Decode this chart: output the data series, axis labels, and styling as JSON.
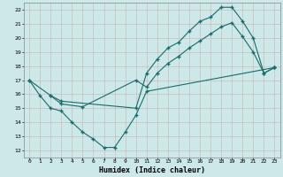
{
  "title": "",
  "xlabel": "Humidex (Indice chaleur)",
  "ylabel": "",
  "bg_color": "#cce8e8",
  "line_color": "#1a6b6b",
  "ylim": [
    11.5,
    22.5
  ],
  "xlim": [
    -0.5,
    23.5
  ],
  "yticks": [
    12,
    13,
    14,
    15,
    16,
    17,
    18,
    19,
    20,
    21,
    22
  ],
  "xticks": [
    0,
    1,
    2,
    3,
    4,
    5,
    6,
    7,
    8,
    9,
    10,
    11,
    12,
    13,
    14,
    15,
    16,
    17,
    18,
    19,
    20,
    21,
    22,
    23
  ],
  "line1_x": [
    0,
    1,
    2,
    3,
    4,
    5,
    6,
    7,
    8,
    9,
    10,
    11,
    23
  ],
  "line1_y": [
    17.0,
    15.9,
    15.0,
    14.8,
    14.0,
    13.3,
    12.8,
    12.2,
    12.2,
    13.3,
    14.5,
    16.2,
    17.9
  ],
  "line2_x": [
    0,
    2,
    3,
    5,
    10,
    11,
    12,
    13,
    14,
    15,
    16,
    17,
    18,
    19,
    20,
    21,
    22,
    23
  ],
  "line2_y": [
    17.0,
    15.9,
    15.3,
    15.1,
    17.0,
    16.5,
    17.5,
    18.2,
    18.7,
    19.3,
    19.8,
    20.3,
    20.8,
    21.1,
    20.1,
    19.0,
    17.5,
    17.9
  ],
  "line3_x": [
    2,
    3,
    10,
    11,
    12,
    13,
    14,
    15,
    16,
    17,
    18,
    19,
    20,
    21,
    22,
    23
  ],
  "line3_y": [
    15.9,
    15.5,
    15.0,
    17.5,
    18.5,
    19.3,
    19.7,
    20.5,
    21.2,
    21.5,
    22.2,
    22.2,
    21.2,
    20.0,
    17.5,
    17.9
  ]
}
